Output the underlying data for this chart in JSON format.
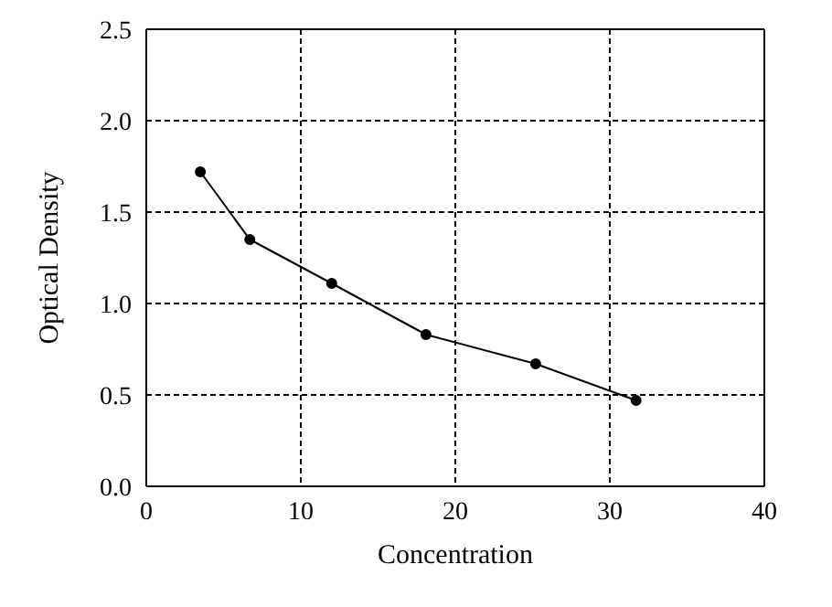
{
  "chart_data": {
    "type": "line",
    "xlabel": "Concentration",
    "ylabel": "Optical Density",
    "x": [
      3.5,
      6.7,
      12.0,
      18.1,
      25.2,
      31.7
    ],
    "series": [
      {
        "color": "#000000",
        "values": [
          1.72,
          1.35,
          1.11,
          0.83,
          0.67,
          0.47
        ]
      }
    ],
    "xlim": [
      0,
      40
    ],
    "xticks": [
      0,
      10,
      20,
      30,
      40
    ],
    "ylim": [
      0,
      2.5
    ],
    "yticks": [
      {
        "value": 0,
        "label": "0.0"
      },
      0.5,
      {
        "value": 1,
        "label": "1.0"
      },
      1.5,
      {
        "value": 2,
        "label": "2.0"
      },
      2.5
    ],
    "grid": true,
    "marker": "circle",
    "line_style": "solid"
  }
}
